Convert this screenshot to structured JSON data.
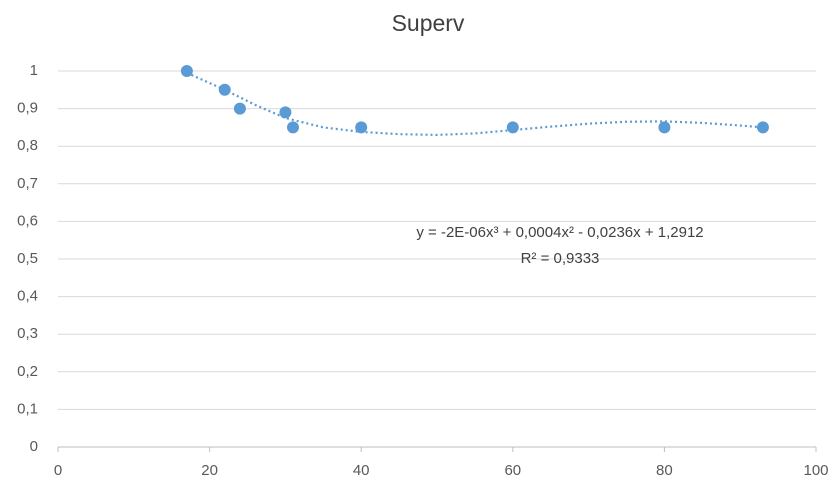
{
  "chart_data": {
    "type": "scatter",
    "title": "Superv",
    "series": [
      {
        "color": "#5b9bd5",
        "x": [
          17,
          22,
          24,
          30,
          31,
          40,
          60,
          80,
          93
        ],
        "values": [
          1,
          0.95,
          0.9,
          0.89,
          0.85,
          0.85,
          0.85,
          0.85,
          0.85
        ]
      }
    ],
    "trendline": {
      "color": "#5b9bd5",
      "x": [
        17,
        22,
        26,
        30,
        35,
        40,
        45,
        50,
        55,
        60,
        65,
        70,
        75,
        80,
        85,
        90,
        93
      ],
      "values": [
        0.995,
        0.95,
        0.91,
        0.875,
        0.85,
        0.838,
        0.832,
        0.83,
        0.834,
        0.843,
        0.852,
        0.86,
        0.865,
        0.866,
        0.862,
        0.855,
        0.85
      ]
    },
    "annotations": [
      "y = -2E-06x³ + 0,0004x² - 0,0236x + 1,2912",
      "R² = 0,9333"
    ],
    "xlim": [
      0,
      100
    ],
    "xticks": [
      0,
      20,
      40,
      60,
      80,
      100
    ],
    "ylim": [
      0,
      1
    ],
    "yticks": [
      0,
      {
        "value": 0.1,
        "label": "0,1"
      },
      {
        "value": 0.2,
        "label": "0,2"
      },
      {
        "value": 0.3,
        "label": "0,3"
      },
      {
        "value": 0.4,
        "label": "0,4"
      },
      {
        "value": 0.5,
        "label": "0,5"
      },
      {
        "value": 0.6,
        "label": "0,6"
      },
      {
        "value": 0.7,
        "label": "0,7"
      },
      {
        "value": 0.8,
        "label": "0,8"
      },
      {
        "value": 0.9,
        "label": "0,9"
      },
      1
    ],
    "grid": true
  }
}
